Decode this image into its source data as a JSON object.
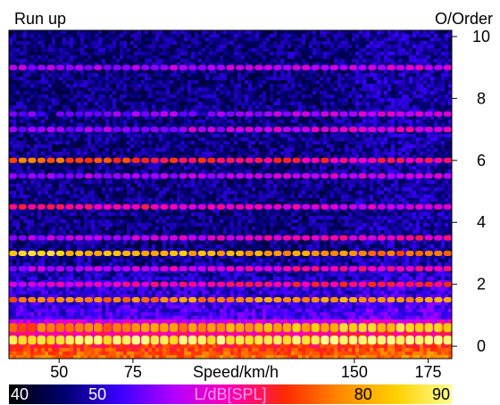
{
  "chart_data": {
    "type": "heatmap",
    "title": "Run up",
    "xlabel": "Speed/km/h",
    "ylabel": "O/Order",
    "x_range": [
      33,
      183
    ],
    "x_ticks": [
      50,
      75,
      150,
      175
    ],
    "y_range": [
      -0.4,
      10.2
    ],
    "y_ticks": [
      0,
      2,
      4,
      6,
      8,
      10
    ],
    "colorbar": {
      "label": "L/dB[SPL]",
      "range": [
        40,
        90
      ],
      "ticks": [
        40,
        50,
        80,
        90
      ],
      "stops": [
        "#000000",
        "#00006e",
        "#3a00ff",
        "#b400ff",
        "#ff00b0",
        "#ff2a00",
        "#ff8c00",
        "#ffd000",
        "#ffff90"
      ]
    },
    "orders": [
      {
        "order": 0.2,
        "level": [
          86,
          88,
          89
        ]
      },
      {
        "order": 0.6,
        "level": [
          74,
          80,
          86
        ]
      },
      {
        "order": 1.5,
        "level": [
          76,
          78,
          80
        ]
      },
      {
        "order": 2.0,
        "level": [
          62,
          66,
          70
        ]
      },
      {
        "order": 2.5,
        "level": [
          58,
          64,
          66
        ]
      },
      {
        "order": 3.0,
        "level": [
          84,
          80,
          74
        ]
      },
      {
        "order": 3.5,
        "level": [
          58,
          62,
          66
        ]
      },
      {
        "order": 4.5,
        "level": [
          68,
          64,
          62
        ]
      },
      {
        "order": 5.5,
        "level": [
          56,
          60,
          62
        ]
      },
      {
        "order": 6.0,
        "level": [
          76,
          68,
          66
        ]
      },
      {
        "order": 7.0,
        "level": [
          56,
          60,
          64
        ]
      },
      {
        "order": 7.5,
        "level": [
          54,
          58,
          62
        ]
      },
      {
        "order": 9.0,
        "level": [
          58,
          60,
          62
        ]
      }
    ]
  }
}
